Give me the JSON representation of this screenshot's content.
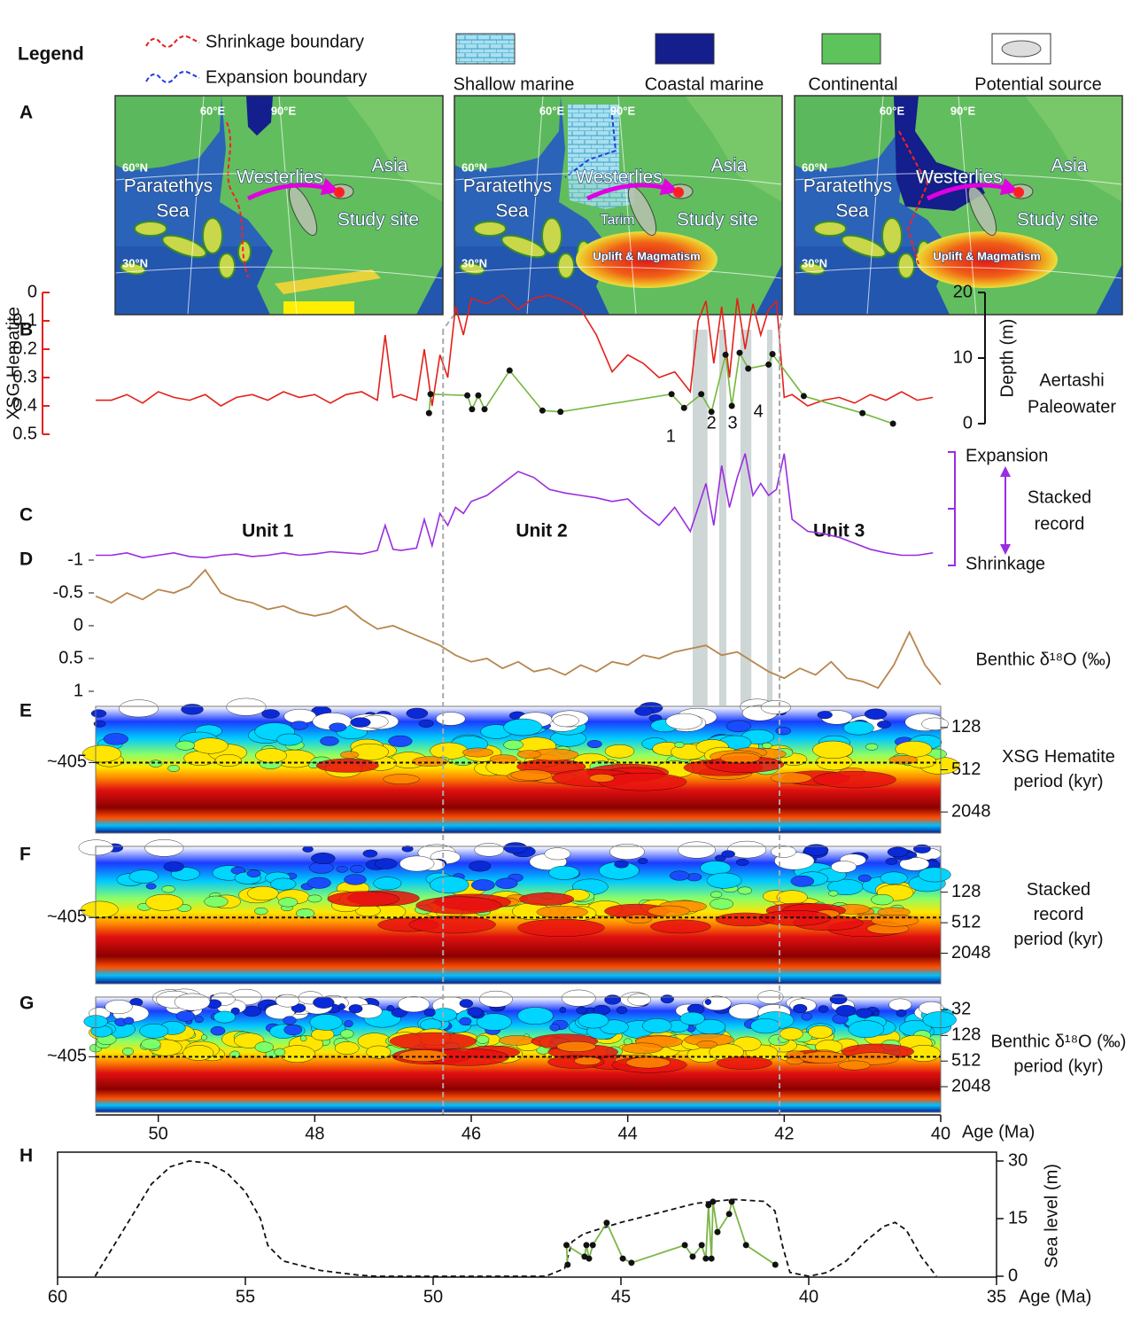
{
  "legend": {
    "title": "Legend",
    "items": [
      "Shrinkage boundary",
      "Expansion boundary",
      "Shallow marine",
      "Coastal marine",
      "Continental",
      "Potential source"
    ]
  },
  "panel_labels": [
    "A",
    "B",
    "C",
    "D",
    "E",
    "F",
    "G",
    "H"
  ],
  "maps": [
    {
      "lon": [
        "60°E",
        "90°E"
      ],
      "lat": [
        "60°N",
        "30°N"
      ],
      "sea": [
        "Paratethys",
        "Sea"
      ],
      "wind": "Westerlies",
      "continent": "Asia",
      "site": "Study site"
    },
    {
      "lon": [
        "60°E",
        "90°E"
      ],
      "lat": [
        "60°N",
        "30°N"
      ],
      "sea": [
        "Paratethys",
        "Sea"
      ],
      "wind": "Westerlies",
      "continent": "Asia",
      "site": "Study site",
      "basin": "Tarim",
      "uplift": "Uplift & Magmatism"
    },
    {
      "lon": [
        "60°E",
        "90°E"
      ],
      "lat": [
        "60°N",
        "30°N"
      ],
      "sea": [
        "Paratethys",
        "Sea"
      ],
      "wind": "Westerlies",
      "continent": "Asia",
      "site": "Study site",
      "uplift": "Uplift & Magmatism"
    }
  ],
  "age_axis": {
    "label": "Age (Ma)",
    "xlim": [
      50.8,
      40
    ],
    "xticks": [
      50,
      48,
      46,
      44,
      42,
      40
    ],
    "highlights": [
      [
        43.17,
        42.98
      ],
      [
        42.83,
        42.74
      ],
      [
        42.56,
        42.42
      ],
      [
        42.22,
        42.15
      ]
    ],
    "boundaries": [
      46.36,
      42.06
    ]
  },
  "chart_data": [
    {
      "type": "line",
      "ylabel": "XSG Hematite",
      "ylim": [
        0.5,
        0
      ],
      "yticks": [
        0,
        0.1,
        0.2,
        0.3,
        0.4,
        0.5
      ],
      "y2label": "Depth (m)",
      "y2lim": [
        0,
        20
      ],
      "y2ticks": [
        0,
        10,
        20
      ],
      "side_label": [
        "Aertashi",
        "Paleowater"
      ],
      "events": [
        {
          "label": "1",
          "x": 43.45
        },
        {
          "label": "2",
          "x": 42.93
        },
        {
          "label": "3",
          "x": 42.66
        },
        {
          "label": "4",
          "x": 42.33
        }
      ],
      "series": [
        {
          "color": "#e32119",
          "x": [
            50.8,
            50.6,
            50.4,
            50.2,
            50.0,
            49.8,
            49.6,
            49.4,
            49.2,
            49.0,
            48.8,
            48.6,
            48.4,
            48.2,
            48.0,
            47.8,
            47.6,
            47.4,
            47.2,
            47.1,
            47.0,
            46.9,
            46.7,
            46.6,
            46.5,
            46.4,
            46.3,
            46.2,
            46.1,
            46.0,
            45.8,
            45.6,
            45.4,
            45.2,
            45.0,
            44.8,
            44.6,
            44.4,
            44.2,
            44.0,
            43.8,
            43.6,
            43.4,
            43.2,
            43.1,
            43.0,
            42.9,
            42.8,
            42.7,
            42.6,
            42.5,
            42.4,
            42.3,
            42.2,
            42.1,
            42.0,
            41.9,
            41.7,
            41.5,
            41.3,
            41.1,
            40.9,
            40.7,
            40.5,
            40.3,
            40.1
          ],
          "values": [
            0.38,
            0.38,
            0.36,
            0.39,
            0.35,
            0.37,
            0.38,
            0.36,
            0.4,
            0.37,
            0.36,
            0.38,
            0.35,
            0.37,
            0.36,
            0.39,
            0.36,
            0.35,
            0.38,
            0.15,
            0.37,
            0.36,
            0.38,
            0.2,
            0.4,
            0.22,
            0.3,
            0.05,
            0.15,
            0.02,
            0.04,
            0.01,
            0.06,
            0.02,
            0.01,
            0.03,
            0.06,
            0.15,
            0.28,
            0.22,
            0.25,
            0.3,
            0.28,
            0.35,
            0.1,
            0.03,
            0.25,
            0.05,
            0.3,
            0.02,
            0.2,
            0.04,
            0.15,
            0.06,
            0.03,
            0.37,
            0.36,
            0.4,
            0.38,
            0.37,
            0.39,
            0.36,
            0.38,
            0.35,
            0.38,
            0.37
          ]
        },
        {
          "color": "#74b83e",
          "axis": "y2",
          "markers": true,
          "x": [
            46.54,
            46.52,
            46.05,
            45.99,
            45.91,
            45.83,
            45.51,
            45.09,
            44.86,
            43.44,
            43.28,
            43.06,
            42.93,
            42.75,
            42.67,
            42.57,
            42.46,
            42.2,
            42.15,
            41.75,
            41.0,
            40.61
          ],
          "values": [
            1.6,
            4.5,
            4.3,
            2.2,
            4.3,
            2.2,
            8.1,
            2.0,
            1.8,
            4.5,
            2.4,
            4.5,
            1.8,
            10.5,
            2.7,
            10.8,
            8.4,
            9.0,
            10.6,
            4.2,
            1.6,
            0
          ]
        }
      ]
    },
    {
      "type": "line",
      "labels": [
        "Expansion",
        "Shrinkage"
      ],
      "side_label": [
        "Stacked",
        "record"
      ],
      "ylim": [
        0,
        1
      ],
      "units": [
        {
          "label": "Unit 1",
          "x": 48.6
        },
        {
          "label": "Unit 2",
          "x": 45.1
        },
        {
          "label": "Unit 3",
          "x": 41.3
        }
      ],
      "series": [
        {
          "color": "#9a2de0",
          "x": [
            50.8,
            50.6,
            50.4,
            50.2,
            50.0,
            49.8,
            49.6,
            49.4,
            49.2,
            49.0,
            48.8,
            48.6,
            48.4,
            48.2,
            48.0,
            47.8,
            47.6,
            47.4,
            47.2,
            47.1,
            47.0,
            46.9,
            46.7,
            46.6,
            46.5,
            46.4,
            46.3,
            46.2,
            46.1,
            46.0,
            45.8,
            45.6,
            45.4,
            45.2,
            45.0,
            44.8,
            44.6,
            44.4,
            44.2,
            44.0,
            43.8,
            43.6,
            43.4,
            43.2,
            43.1,
            43.0,
            42.9,
            42.8,
            42.7,
            42.6,
            42.5,
            42.4,
            42.3,
            42.2,
            42.1,
            42.0,
            41.9,
            41.7,
            41.5,
            41.3,
            41.1,
            40.9,
            40.7,
            40.5,
            40.3,
            40.1
          ],
          "values": [
            0.1,
            0.1,
            0.12,
            0.08,
            0.1,
            0.12,
            0.09,
            0.08,
            0.1,
            0.11,
            0.09,
            0.1,
            0.12,
            0.1,
            0.11,
            0.13,
            0.12,
            0.11,
            0.14,
            0.35,
            0.15,
            0.14,
            0.16,
            0.4,
            0.18,
            0.45,
            0.35,
            0.5,
            0.45,
            0.55,
            0.6,
            0.7,
            0.8,
            0.75,
            0.65,
            0.62,
            0.6,
            0.58,
            0.55,
            0.57,
            0.45,
            0.35,
            0.5,
            0.3,
            0.5,
            0.7,
            0.35,
            0.85,
            0.5,
            0.75,
            0.95,
            0.6,
            0.7,
            0.6,
            0.65,
            0.95,
            0.4,
            0.3,
            0.28,
            0.25,
            0.2,
            0.15,
            0.12,
            0.1,
            0.1,
            0.12
          ]
        }
      ]
    },
    {
      "type": "line",
      "ylabel": "Benthic δ¹⁸O (‰)",
      "ylim": [
        1,
        -1
      ],
      "yticks": [
        -1,
        -0.5,
        0,
        0.5,
        1
      ],
      "series": [
        {
          "color": "#b8864e",
          "x": [
            50.8,
            50.6,
            50.4,
            50.2,
            50.0,
            49.8,
            49.6,
            49.4,
            49.2,
            49.0,
            48.8,
            48.6,
            48.4,
            48.2,
            48.0,
            47.8,
            47.6,
            47.4,
            47.2,
            47.0,
            46.8,
            46.6,
            46.4,
            46.2,
            46.0,
            45.8,
            45.6,
            45.4,
            45.2,
            45.0,
            44.8,
            44.6,
            44.4,
            44.2,
            44.0,
            43.8,
            43.6,
            43.4,
            43.2,
            43.0,
            42.8,
            42.6,
            42.4,
            42.2,
            42.0,
            41.8,
            41.6,
            41.4,
            41.2,
            41.0,
            40.8,
            40.6,
            40.4,
            40.2,
            40.0
          ],
          "values": [
            -0.45,
            -0.35,
            -0.5,
            -0.4,
            -0.55,
            -0.5,
            -0.6,
            -0.85,
            -0.5,
            -0.4,
            -0.35,
            -0.25,
            -0.3,
            -0.2,
            -0.15,
            -0.2,
            -0.3,
            -0.1,
            0.05,
            0.0,
            0.1,
            0.2,
            0.3,
            0.45,
            0.55,
            0.5,
            0.65,
            0.55,
            0.7,
            0.65,
            0.75,
            0.6,
            0.7,
            0.55,
            0.6,
            0.45,
            0.5,
            0.4,
            0.35,
            0.3,
            0.45,
            0.4,
            0.55,
            0.7,
            0.8,
            0.65,
            0.75,
            0.55,
            0.8,
            0.85,
            0.95,
            0.6,
            0.1,
            0.6,
            0.9
          ]
        }
      ]
    },
    {
      "type": "wavelet",
      "ylog": true,
      "ylim": [
        4096,
        64
      ],
      "yticks": [
        128,
        512,
        2048
      ],
      "reference": {
        "value": 405,
        "label": "~405"
      },
      "side_label": [
        "XSG Hematite",
        "period (kyr)"
      ]
    },
    {
      "type": "wavelet",
      "ylog": true,
      "ylim": [
        8192,
        16
      ],
      "yticks": [
        128,
        512,
        2048
      ],
      "reference": {
        "value": 405,
        "label": "~405"
      },
      "side_label": [
        "Stacked",
        "record",
        "period (kyr)"
      ]
    },
    {
      "type": "wavelet",
      "ylog": true,
      "ylim": [
        8192,
        16
      ],
      "yticks": [
        32,
        128,
        512,
        2048
      ],
      "reference": {
        "value": 405,
        "label": "~405"
      },
      "side_label": [
        "Benthic δ¹⁸O (‰)",
        "period (kyr)"
      ]
    },
    {
      "type": "line",
      "xlabel": "Age (Ma)",
      "ylabel": "Sea level (m)",
      "xlim": [
        60,
        35
      ],
      "xticks": [
        60,
        55,
        50,
        45,
        40,
        35
      ],
      "ylim": [
        0,
        30
      ],
      "yticks": [
        0,
        15,
        30
      ],
      "series": [
        {
          "color": "#111111",
          "dash": true,
          "x": [
            59.0,
            58.5,
            58.0,
            57.5,
            57.0,
            56.5,
            56.0,
            55.5,
            55.0,
            54.6,
            54.4,
            54.0,
            53.0,
            52.0,
            51.5,
            47.0,
            46.5,
            46.3,
            46.0,
            45.0,
            44.0,
            43.0,
            42.0,
            41.2,
            40.9,
            40.7,
            40.5,
            40.0,
            39.5,
            39.0,
            38.5,
            38.0,
            37.7,
            37.4,
            37.0,
            36.6
          ],
          "values": [
            0,
            8,
            16,
            24,
            28.5,
            30,
            29.5,
            27,
            22,
            15,
            8,
            4,
            1.5,
            0.3,
            0,
            0,
            2,
            9,
            11,
            14,
            16.5,
            19,
            20,
            19.5,
            17,
            8,
            1,
            0,
            1,
            4,
            9,
            13,
            14,
            12,
            5,
            0
          ]
        },
        {
          "color": "#7ab648",
          "markers": true,
          "x": [
            46.42,
            46.45,
            45.97,
            45.92,
            45.85,
            45.75,
            45.38,
            44.95,
            44.72,
            43.3,
            43.09,
            42.85,
            42.74,
            42.67,
            42.59,
            42.55,
            42.43,
            42.12,
            42.05,
            41.67,
            40.89
          ],
          "values": [
            3.0,
            8.1,
            5.1,
            8.1,
            4.6,
            8.1,
            13.9,
            4.6,
            3.5,
            8.1,
            5.1,
            8.1,
            4.6,
            18.5,
            4.6,
            19.4,
            11.5,
            16.2,
            19.4,
            8.1,
            3.0
          ]
        }
      ]
    }
  ]
}
